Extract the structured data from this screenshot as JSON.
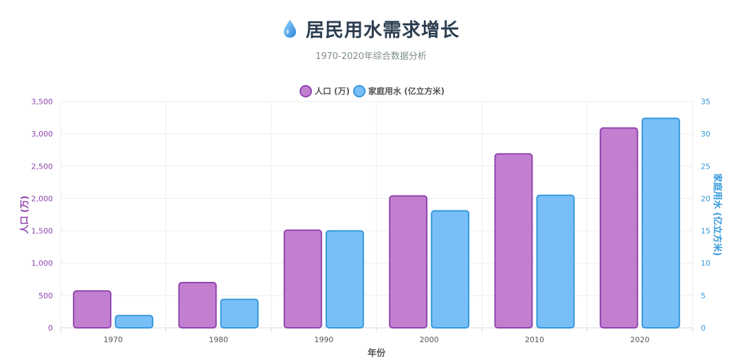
{
  "header": {
    "icon": "water-drop-icon",
    "title": "居民用水需求增长",
    "subtitle": "1970-2020年综合数据分析"
  },
  "colors": {
    "population_fill": "#c27fd0",
    "population_stroke": "#8e44ad",
    "water_fill": "#78bff8",
    "water_stroke": "#3498db",
    "title": "#2c3e50"
  },
  "chart_data": {
    "type": "bar",
    "categories": [
      "1970",
      "1980",
      "1990",
      "2000",
      "2010",
      "2020"
    ],
    "series": [
      {
        "name": "人口 (万)",
        "axis": "left",
        "values": [
          570,
          700,
          1510,
          2040,
          2690,
          3090
        ]
      },
      {
        "name": "家庭用水 (亿立方米)",
        "axis": "right",
        "values": [
          1.9,
          4.4,
          15.0,
          18.1,
          20.5,
          32.4
        ]
      }
    ],
    "xlabel": "年份",
    "ylabel_left": "人口 (万)",
    "ylabel_right": "家庭用水 (亿立方米)",
    "ylim_left": [
      0,
      3500
    ],
    "ylim_right": [
      0,
      35
    ],
    "yticks_left": [
      "0",
      "500",
      "1,000",
      "1,500",
      "2,000",
      "2,500",
      "3,000",
      "3,500"
    ],
    "yticks_right": [
      "0",
      "5",
      "10",
      "15",
      "20",
      "25",
      "30",
      "35"
    ],
    "legend_position": "top-center",
    "grid": true
  }
}
